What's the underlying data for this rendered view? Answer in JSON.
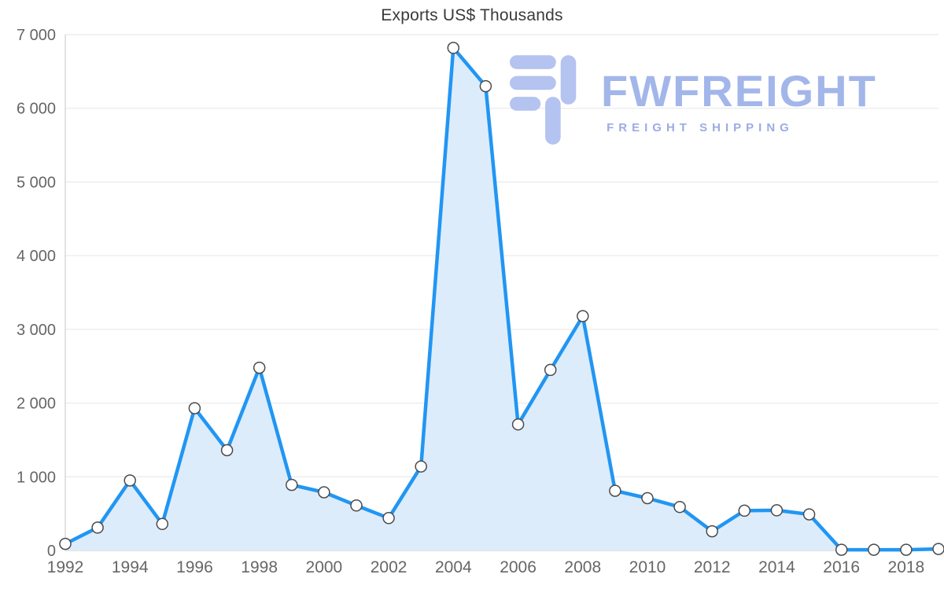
{
  "title": "Exports US$ Thousands",
  "watermark": {
    "brand": "FWFREIGHT",
    "tagline": "FREIGHT SHIPPING"
  },
  "chart_data": {
    "type": "area",
    "title": "Exports US$ Thousands",
    "xlabel": "",
    "ylabel": "",
    "x": [
      1992,
      1993,
      1994,
      1995,
      1996,
      1997,
      1998,
      1999,
      2000,
      2001,
      2002,
      2003,
      2004,
      2005,
      2006,
      2007,
      2008,
      2009,
      2010,
      2011,
      2012,
      2013,
      2014,
      2015,
      2016,
      2017,
      2018,
      2019
    ],
    "series": [
      {
        "name": "Exports US$ Thousands",
        "values": [
          90,
          310,
          950,
          360,
          1930,
          1360,
          2480,
          890,
          790,
          610,
          440,
          1140,
          6820,
          6300,
          1710,
          2450,
          3180,
          810,
          710,
          590,
          260,
          540,
          545,
          490,
          10,
          10,
          10,
          20
        ]
      }
    ],
    "ylim": [
      0,
      7000
    ],
    "ytick_step": 1000,
    "ytick_labels": [
      "0",
      "1 000",
      "2 000",
      "3 000",
      "4 000",
      "5 000",
      "6 000",
      "7 000"
    ],
    "xtick_labels": [
      "1992",
      "1994",
      "1996",
      "1998",
      "2000",
      "2002",
      "2004",
      "2006",
      "2008",
      "2010",
      "2012",
      "2014",
      "2016",
      "2018"
    ],
    "grid": true,
    "legend": "none",
    "colors": {
      "line": "#2196f3",
      "fill": "#ddecfb",
      "marker_fill": "#ffffff",
      "marker_stroke": "#4a4a4a",
      "grid": "#e6e6e6",
      "axis": "#c4c4c4",
      "label": "#666666",
      "title": "#3a3a3a",
      "watermark": "#a3b6ea",
      "logo": "#b4c3f0"
    }
  }
}
